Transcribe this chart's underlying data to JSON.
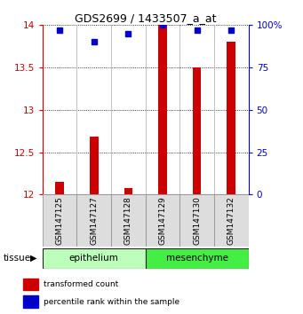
{
  "title": "GDS2699 / 1433507_a_at",
  "samples": [
    "GSM147125",
    "GSM147127",
    "GSM147128",
    "GSM147129",
    "GSM147130",
    "GSM147132"
  ],
  "red_values": [
    12.15,
    12.68,
    12.08,
    14.0,
    13.5,
    13.8
  ],
  "blue_values": [
    97,
    90,
    95,
    100,
    97,
    97
  ],
  "ylim_left": [
    12,
    14
  ],
  "ylim_right": [
    0,
    100
  ],
  "yticks_left": [
    12,
    12.5,
    13,
    13.5,
    14
  ],
  "ytick_labels_left": [
    "12",
    "12.5",
    "13",
    "13.5",
    "14"
  ],
  "yticks_right": [
    0,
    25,
    50,
    75,
    100
  ],
  "ytick_labels_right": [
    "0",
    "25",
    "50",
    "75",
    "100%"
  ],
  "tissue_groups": [
    {
      "label": "epithelium",
      "start": 0,
      "end": 3,
      "color": "#bbffbb"
    },
    {
      "label": "mesenchyme",
      "start": 3,
      "end": 6,
      "color": "#44ee44"
    }
  ],
  "tissue_label": "tissue",
  "bar_color": "#cc0000",
  "square_color": "#0000cc",
  "legend_red_label": "transformed count",
  "legend_blue_label": "percentile rank within the sample",
  "background_color": "#ffffff",
  "left_axis_color": "#cc0000",
  "right_axis_color": "#0000cc",
  "sample_box_color": "#dddddd",
  "sample_box_edge": "#888888",
  "bar_width": 0.25
}
